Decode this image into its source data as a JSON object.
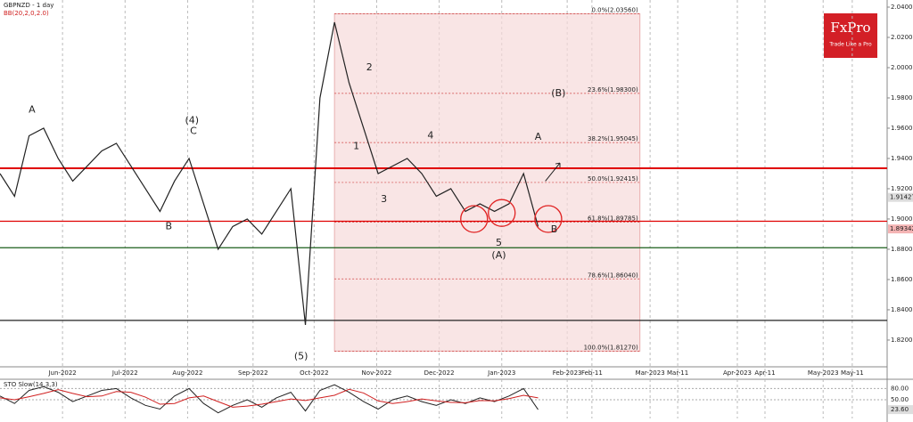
{
  "logo": {
    "name": "FxPro",
    "tagline": "Trade Like a Pro"
  },
  "chart_data": [
    {
      "type": "line",
      "title": "GBPNZD - 1 day",
      "subtitle": "BB(20,2,0,2.0)",
      "x": [
        0,
        1,
        2,
        3,
        4,
        5,
        6,
        7,
        8,
        9,
        10,
        11,
        12,
        13,
        14,
        15,
        16,
        17,
        18,
        19,
        20,
        21,
        22,
        23,
        24,
        25,
        26,
        27,
        28,
        29,
        30,
        31,
        32,
        33,
        34,
        35,
        36,
        37
      ],
      "values": [
        1.93,
        1.915,
        1.955,
        1.96,
        1.94,
        1.925,
        1.935,
        1.945,
        1.95,
        1.935,
        1.92,
        1.905,
        1.925,
        1.94,
        1.91,
        1.88,
        1.895,
        1.9,
        1.89,
        1.905,
        1.92,
        1.83,
        1.98,
        2.03,
        1.99,
        1.96,
        1.93,
        1.935,
        1.94,
        1.93,
        1.915,
        1.92,
        1.905,
        1.91,
        1.905,
        1.91,
        1.93,
        1.895
      ],
      "color": "#222222",
      "xlim": [
        0,
        61
      ],
      "xticks": [
        {
          "value": 4.3,
          "label": "Jun-2022"
        },
        {
          "value": 8.6,
          "label": "Jul-2022"
        },
        {
          "value": 12.9,
          "label": "Aug-2022"
        },
        {
          "value": 17.4,
          "label": "Sep-2022"
        },
        {
          "value": 21.6,
          "label": "Oct-2022"
        },
        {
          "value": 25.9,
          "label": "Nov-2022"
        },
        {
          "value": 30.2,
          "label": "Dec-2022"
        },
        {
          "value": 34.5,
          "label": "Jan-2023"
        },
        {
          "value": 39.0,
          "label": "Feb-2023"
        },
        {
          "value": 40.7,
          "label": "Feb-11"
        },
        {
          "value": 44.7,
          "label": "Mar-2023"
        },
        {
          "value": 46.6,
          "label": "Mar-11"
        },
        {
          "value": 50.7,
          "label": "Apr-2023"
        },
        {
          "value": 52.6,
          "label": "Apr-11"
        },
        {
          "value": 56.6,
          "label": "May-2023"
        },
        {
          "value": 58.6,
          "label": "May-11"
        }
      ],
      "ylim": [
        1.8035,
        2.0447
      ],
      "yticks": [
        {
          "value": 1.82,
          "label": "1.82000"
        },
        {
          "value": 1.84,
          "label": "1.84000"
        },
        {
          "value": 1.86,
          "label": "1.86000"
        },
        {
          "value": 1.88,
          "label": "1.88000"
        },
        {
          "value": 1.9,
          "label": "1.90000"
        },
        {
          "value": 1.92,
          "label": "1.92000"
        },
        {
          "value": 1.94,
          "label": "1.94000"
        },
        {
          "value": 1.96,
          "label": "1.96000"
        },
        {
          "value": 1.98,
          "label": "1.98000"
        },
        {
          "value": 2.0,
          "label": "2.00000"
        },
        {
          "value": 2.02,
          "label": "2.02000"
        },
        {
          "value": 2.04,
          "label": "2.04000"
        }
      ],
      "grid": true,
      "levels": [
        {
          "value": 1.9335,
          "color": "#e00000"
        },
        {
          "value": 1.8985,
          "color": "#e00000"
        },
        {
          "value": 1.881,
          "color": "#1a5e1a"
        },
        {
          "value": 1.833,
          "color": "#222222"
        }
      ],
      "fib_xlim": [
        23,
        44
      ],
      "fib": [
        {
          "value": 2.0356,
          "label": "0.0%(2.03560)"
        },
        {
          "value": 1.983,
          "label": "23.6%(1.98300)"
        },
        {
          "value": 1.9505,
          "label": "38.2%(1.95045)"
        },
        {
          "value": 1.92415,
          "label": "50.0%(1.92415)"
        },
        {
          "value": 1.89785,
          "label": "61.8%(1.89785)"
        },
        {
          "value": 1.8604,
          "label": "78.6%(1.86040)"
        },
        {
          "value": 1.8127,
          "label": "100.0%(1.81270)"
        }
      ],
      "price_labels": [
        {
          "value": 1.91427,
          "label": "1.91427",
          "color": "#dddddd"
        },
        {
          "value": 1.89342,
          "label": "1.89342",
          "color": "#f4b4b4"
        }
      ],
      "wave_labels": [
        "A",
        "(4)",
        "C",
        "B",
        "1",
        "2",
        "3",
        "4",
        "A",
        "(B)",
        "5",
        "(A)",
        "B",
        "(5)"
      ]
    },
    {
      "type": "line",
      "title": "STO Slow(14,3,3)",
      "x": [
        0,
        1,
        2,
        3,
        4,
        5,
        6,
        7,
        8,
        9,
        10,
        11,
        12,
        13,
        14,
        15,
        16,
        17,
        18,
        19,
        20,
        21,
        22,
        23,
        24,
        25,
        26,
        27,
        28,
        29,
        30,
        31,
        32,
        33,
        34,
        35,
        36,
        37
      ],
      "lines": [
        {
          "color": "#222222",
          "values": [
            60,
            40,
            75,
            85,
            70,
            45,
            60,
            75,
            80,
            55,
            35,
            25,
            60,
            80,
            40,
            15,
            35,
            50,
            30,
            55,
            70,
            20,
            75,
            90,
            70,
            45,
            25,
            50,
            60,
            45,
            35,
            50,
            40,
            55,
            45,
            60,
            80,
            23.6
          ]
        },
        {
          "color": "#d02020",
          "values": [
            55,
            50,
            58,
            67,
            77,
            67,
            58,
            60,
            72,
            70,
            57,
            38,
            40,
            55,
            60,
            45,
            30,
            33,
            38,
            45,
            52,
            48,
            55,
            62,
            78,
            68,
            47,
            40,
            45,
            52,
            47,
            43,
            42,
            48,
            47,
            53,
            62,
            55
          ]
        }
      ],
      "xlim": [
        0,
        61
      ],
      "ylim": [
        0,
        100
      ],
      "yticks": [
        {
          "value": 50,
          "label": "50.00"
        },
        {
          "value": 80,
          "label": "80.00"
        }
      ],
      "current": {
        "value": 23.6,
        "label": "23.60"
      }
    }
  ]
}
